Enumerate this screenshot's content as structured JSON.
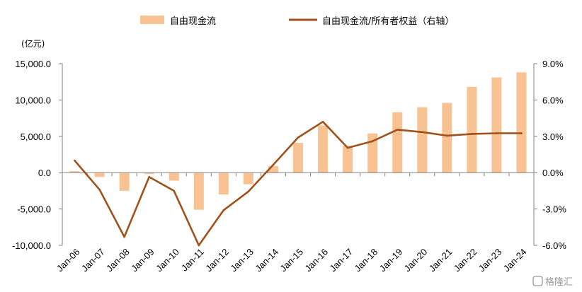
{
  "chart_data": {
    "type": "bar",
    "categories": [
      "Jan-06",
      "Jan-07",
      "Jan-08",
      "Jan-09",
      "Jan-10",
      "Jan-11",
      "Jan-12",
      "Jan-13",
      "Jan-14",
      "Jan-15",
      "Jan-16",
      "Jan-17",
      "Jan-18",
      "Jan-19",
      "Jan-20",
      "Jan-21",
      "Jan-22",
      "Jan-23",
      "Jan-24"
    ],
    "series": [
      {
        "name": "自由现金流",
        "axis": "left",
        "type": "bar",
        "values": [
          200,
          -600,
          -2500,
          -200,
          -1100,
          -5100,
          -3000,
          -1600,
          900,
          4100,
          6500,
          3700,
          5400,
          8300,
          9000,
          9600,
          11800,
          13100,
          13800
        ]
      },
      {
        "name": "自由现金流/所有者权益（右轴）",
        "axis": "right",
        "type": "line",
        "values": [
          1.0,
          -1.4,
          -5.3,
          -0.35,
          -1.5,
          -6.0,
          -3.1,
          -1.55,
          0.65,
          2.9,
          4.2,
          2.05,
          2.6,
          3.55,
          3.35,
          3.05,
          3.2,
          3.25,
          3.25
        ]
      }
    ],
    "y_left": {
      "unit": "(亿元)",
      "min": -10000,
      "max": 15000,
      "ticks": [
        -10000,
        -5000,
        0,
        5000,
        10000,
        15000
      ],
      "tick_labels": [
        "-10,000.0",
        "-5,000.0",
        "0.0",
        "5,000.0",
        "10,000.0",
        "15,000.0"
      ]
    },
    "y_right": {
      "min": -6.0,
      "max": 9.0,
      "ticks": [
        -6,
        -3,
        0,
        3,
        6,
        9
      ],
      "tick_labels": [
        "-6.0%",
        "-3.0%",
        "0.0%",
        "3.0%",
        "6.0%",
        "9.0%"
      ]
    },
    "grid": false,
    "legend_position": "top",
    "colors": {
      "bar": "#f9c293",
      "line": "#a0521c"
    }
  },
  "watermark": {
    "text": "格隆汇"
  }
}
